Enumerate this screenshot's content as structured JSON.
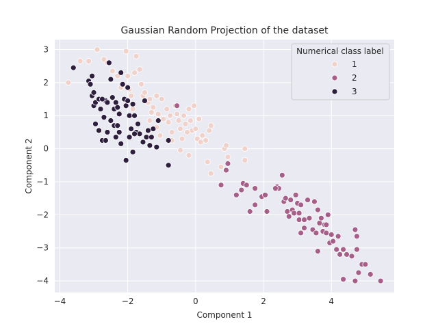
{
  "chart_data": {
    "type": "scatter",
    "title": "Gaussian Random Projection of the dataset",
    "xlabel": "Component 1",
    "ylabel": "Component 2",
    "xlim": [
      -4.15,
      5.85
    ],
    "ylim": [
      -4.35,
      3.3
    ],
    "xticks": [
      -4,
      -2,
      0,
      2,
      4
    ],
    "yticks": [
      -4,
      -3,
      -2,
      -1,
      0,
      1,
      2,
      3
    ],
    "grid": true,
    "legend": {
      "title": "Numerical class label",
      "placement": "top-right"
    },
    "series": [
      {
        "name": "1",
        "color": "#f0d2cb",
        "points": [
          [
            -3.75,
            2.0
          ],
          [
            -3.4,
            2.65
          ],
          [
            -3.15,
            2.65
          ],
          [
            -2.9,
            3.0
          ],
          [
            -2.7,
            2.7
          ],
          [
            -2.6,
            2.6
          ],
          [
            -2.45,
            2.35
          ],
          [
            -2.3,
            2.2
          ],
          [
            -2.2,
            1.85
          ],
          [
            -2.05,
            2.95
          ],
          [
            -2.0,
            2.2
          ],
          [
            -1.95,
            1.8
          ],
          [
            -1.9,
            1.6
          ],
          [
            -1.85,
            1.2
          ],
          [
            -1.8,
            2.3
          ],
          [
            -1.75,
            2.8
          ],
          [
            -1.65,
            2.4
          ],
          [
            -1.6,
            1.95
          ],
          [
            -1.55,
            1.6
          ],
          [
            -1.5,
            1.7
          ],
          [
            -1.4,
            1.4
          ],
          [
            -1.35,
            1.5
          ],
          [
            -1.3,
            1.1
          ],
          [
            -1.25,
            1.25
          ],
          [
            -1.15,
            1.6
          ],
          [
            -1.1,
            1.05
          ],
          [
            -1.0,
            1.5
          ],
          [
            -0.95,
            0.9
          ],
          [
            -0.85,
            1.2
          ],
          [
            -0.8,
            0.8
          ],
          [
            -0.75,
            1.0
          ],
          [
            -0.7,
            0.5
          ],
          [
            -0.6,
            1.3
          ],
          [
            -0.55,
            1.05
          ],
          [
            -0.5,
            0.85
          ],
          [
            -0.45,
            0.6
          ],
          [
            -0.4,
            0.3
          ],
          [
            -0.35,
            1.0
          ],
          [
            -0.3,
            0.75
          ],
          [
            -0.25,
            0.5
          ],
          [
            -0.2,
            1.2
          ],
          [
            -0.15,
            0.85
          ],
          [
            -0.1,
            0.55
          ],
          [
            -0.05,
            1.3
          ],
          [
            0.0,
            0.6
          ],
          [
            0.05,
            0.3
          ],
          [
            0.1,
            0.9
          ],
          [
            0.15,
            0.2
          ],
          [
            0.2,
            0.4
          ],
          [
            0.3,
            0.25
          ],
          [
            0.4,
            0.55
          ],
          [
            0.45,
            0.7
          ],
          [
            -0.7,
            0.25
          ],
          [
            -0.45,
            -0.05
          ],
          [
            -0.2,
            -0.2
          ],
          [
            0.35,
            -0.4
          ],
          [
            0.45,
            -0.75
          ],
          [
            0.75,
            -0.55
          ],
          [
            0.85,
            0.0
          ],
          [
            0.9,
            0.1
          ],
          [
            0.95,
            -0.25
          ],
          [
            1.45,
            0.0
          ],
          [
            1.45,
            -0.35
          ],
          [
            -1.35,
            0.85
          ],
          [
            -1.15,
            0.65
          ],
          [
            -1.05,
            0.4
          ]
        ]
      },
      {
        "name": "2",
        "color": "#a65f88",
        "points": [
          [
            -0.55,
            1.3
          ],
          [
            0.95,
            -0.45
          ],
          [
            0.9,
            -0.65
          ],
          [
            0.75,
            -1.1
          ],
          [
            1.2,
            -1.4
          ],
          [
            1.35,
            -1.25
          ],
          [
            1.4,
            -1.05
          ],
          [
            1.5,
            -1.1
          ],
          [
            1.6,
            -1.9
          ],
          [
            1.75,
            -1.2
          ],
          [
            1.75,
            -1.7
          ],
          [
            1.95,
            -1.45
          ],
          [
            2.05,
            -1.4
          ],
          [
            2.1,
            -1.9
          ],
          [
            2.4,
            -1.15
          ],
          [
            2.45,
            -1.2
          ],
          [
            2.55,
            -0.8
          ],
          [
            2.6,
            -1.6
          ],
          [
            2.65,
            -1.5
          ],
          [
            2.7,
            -1.9
          ],
          [
            2.75,
            -2.05
          ],
          [
            2.8,
            -1.55
          ],
          [
            2.85,
            -1.85
          ],
          [
            2.9,
            -1.95
          ],
          [
            2.95,
            -1.4
          ],
          [
            3.0,
            -1.65
          ],
          [
            3.05,
            -2.15
          ],
          [
            3.05,
            -1.95
          ],
          [
            3.1,
            -1.7
          ],
          [
            3.1,
            -2.55
          ],
          [
            3.2,
            -2.4
          ],
          [
            3.2,
            -2.15
          ],
          [
            3.3,
            -1.55
          ],
          [
            3.35,
            -2.1
          ],
          [
            3.45,
            -2.45
          ],
          [
            3.5,
            -1.6
          ],
          [
            3.55,
            -2.55
          ],
          [
            3.6,
            -1.85
          ],
          [
            3.65,
            -2.25
          ],
          [
            3.7,
            -2.1
          ],
          [
            3.75,
            -2.5
          ],
          [
            3.8,
            -2.3
          ],
          [
            3.85,
            -2.55
          ],
          [
            3.9,
            -2.0
          ],
          [
            3.95,
            -2.85
          ],
          [
            4.0,
            -2.6
          ],
          [
            4.05,
            -2.8
          ],
          [
            4.15,
            -3.05
          ],
          [
            4.2,
            -2.65
          ],
          [
            4.25,
            -3.2
          ],
          [
            4.35,
            -3.05
          ],
          [
            4.45,
            -3.2
          ],
          [
            4.6,
            -3.25
          ],
          [
            4.7,
            -2.45
          ],
          [
            4.75,
            -2.65
          ],
          [
            4.75,
            -3.05
          ],
          [
            4.8,
            -3.75
          ],
          [
            4.9,
            -3.5
          ],
          [
            5.0,
            -3.5
          ],
          [
            5.15,
            -3.8
          ],
          [
            5.45,
            -4.0
          ],
          [
            4.7,
            -4.0
          ],
          [
            4.35,
            -3.95
          ],
          [
            3.6,
            -3.1
          ],
          [
            3.85,
            -2.3
          ],
          [
            2.35,
            -1.2
          ]
        ]
      },
      {
        "name": "3",
        "color": "#2d1e3e",
        "points": [
          [
            -3.6,
            2.45
          ],
          [
            -3.15,
            2.05
          ],
          [
            -3.05,
            2.2
          ],
          [
            -3.1,
            1.95
          ],
          [
            -3.05,
            1.6
          ],
          [
            -3.0,
            1.7
          ],
          [
            -3.0,
            1.3
          ],
          [
            -2.95,
            1.4
          ],
          [
            -2.85,
            1.5
          ],
          [
            -2.8,
            1.2
          ],
          [
            -2.7,
            0.95
          ],
          [
            -2.65,
            1.45
          ],
          [
            -2.6,
            1.4
          ],
          [
            -2.55,
            2.6
          ],
          [
            -2.5,
            2.1
          ],
          [
            -2.45,
            1.55
          ],
          [
            -2.4,
            1.2
          ],
          [
            -2.35,
            1.4
          ],
          [
            -2.3,
            1.25
          ],
          [
            -2.25,
            1.05
          ],
          [
            -2.2,
            2.3
          ],
          [
            -2.15,
            1.95
          ],
          [
            -2.1,
            1.5
          ],
          [
            -2.05,
            1.3
          ],
          [
            -2.0,
            1.45
          ],
          [
            -1.95,
            1.0
          ],
          [
            -1.9,
            0.6
          ],
          [
            -1.85,
            1.35
          ],
          [
            -1.8,
            1.0
          ],
          [
            -1.75,
            0.5
          ],
          [
            -1.7,
            0.75
          ],
          [
            -1.65,
            0.45
          ],
          [
            -1.55,
            0.2
          ],
          [
            -1.45,
            0.35
          ],
          [
            -1.4,
            0.55
          ],
          [
            -1.35,
            0.1
          ],
          [
            -1.3,
            0.35
          ],
          [
            -1.25,
            0.6
          ],
          [
            -1.15,
            0.05
          ],
          [
            -1.1,
            0.85
          ],
          [
            -0.8,
            0.25
          ],
          [
            -0.8,
            -0.5
          ],
          [
            -2.95,
            0.75
          ],
          [
            -2.85,
            0.55
          ],
          [
            -2.75,
            0.25
          ],
          [
            -2.6,
            0.5
          ],
          [
            -2.5,
            0.85
          ],
          [
            -2.4,
            0.7
          ],
          [
            -2.35,
            0.35
          ],
          [
            -2.2,
            0.15
          ],
          [
            -2.05,
            -0.35
          ],
          [
            -1.95,
            0.35
          ],
          [
            -1.85,
            -0.1
          ],
          [
            -1.5,
            1.45
          ],
          [
            -2.65,
            0.25
          ],
          [
            -2.25,
            0.5
          ],
          [
            -1.8,
            0.45
          ],
          [
            -2.0,
            1.85
          ],
          [
            -2.3,
            0.7
          ],
          [
            -2.75,
            1.5
          ]
        ]
      }
    ]
  }
}
